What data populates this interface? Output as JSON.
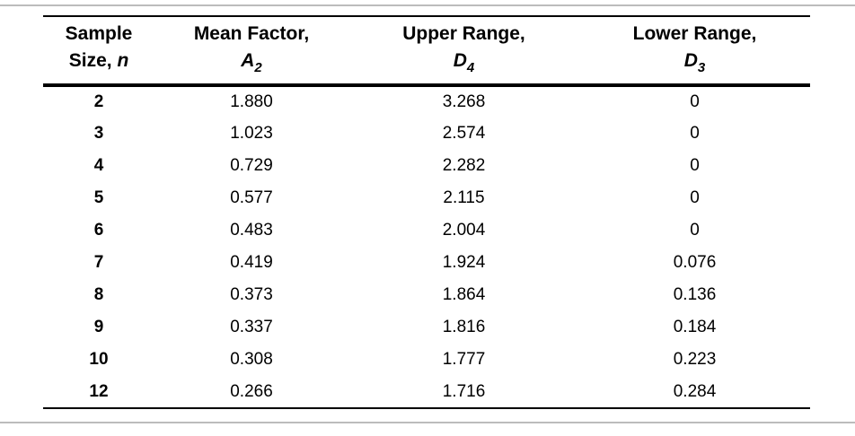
{
  "colors": {
    "background": "#ffffff",
    "divider_gray": "#bcbcbc",
    "rule_black": "#000000",
    "text": "#000000"
  },
  "table": {
    "columns": [
      {
        "line1": "Sample",
        "line2_text": "Size, ",
        "symbol": "n",
        "subscript": ""
      },
      {
        "line1": "Mean Factor,",
        "line2_text": "",
        "symbol": "A",
        "subscript": "2"
      },
      {
        "line1": "Upper Range,",
        "line2_text": "",
        "symbol": "D",
        "subscript": "4"
      },
      {
        "line1": "Lower Range,",
        "line2_text": "",
        "symbol": "D",
        "subscript": "3"
      }
    ],
    "rows": [
      [
        "2",
        "1.880",
        "3.268",
        "0"
      ],
      [
        "3",
        "1.023",
        "2.574",
        "0"
      ],
      [
        "4",
        "0.729",
        "2.282",
        "0"
      ],
      [
        "5",
        "0.577",
        "2.115",
        "0"
      ],
      [
        "6",
        "0.483",
        "2.004",
        "0"
      ],
      [
        "7",
        "0.419",
        "1.924",
        "0.076"
      ],
      [
        "8",
        "0.373",
        "1.864",
        "0.136"
      ],
      [
        "9",
        "0.337",
        "1.816",
        "0.184"
      ],
      [
        "10",
        "0.308",
        "1.777",
        "0.223"
      ],
      [
        "12",
        "0.266",
        "1.716",
        "0.284"
      ]
    ]
  }
}
